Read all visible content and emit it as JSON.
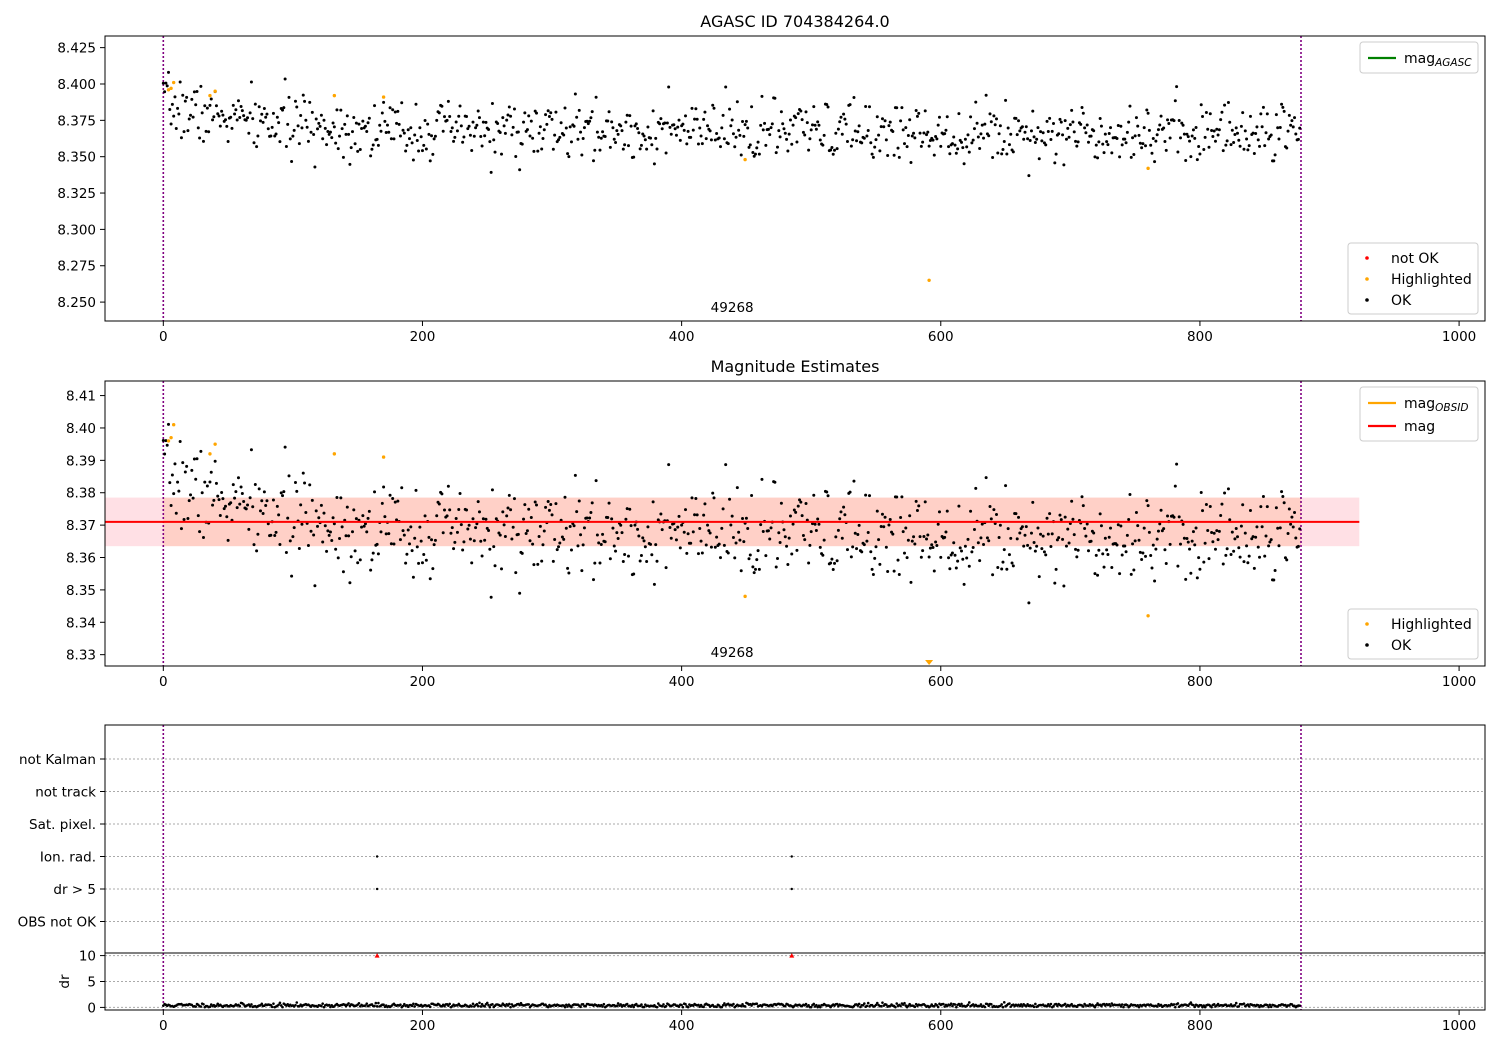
{
  "chart_data": [
    {
      "type": "scatter",
      "title": "AGASC ID 704384264.0",
      "xlim": [
        -45,
        1020
      ],
      "ylim": [
        8.237,
        8.433
      ],
      "x_ticks": [
        0,
        200,
        400,
        600,
        800,
        1000
      ],
      "x_tick_labels": [
        "0",
        "200",
        "400",
        "600",
        "800",
        "1000"
      ],
      "y_ticks": [
        8.25,
        8.275,
        8.3,
        8.325,
        8.35,
        8.375,
        8.4,
        8.425
      ],
      "y_tick_labels": [
        "8.250",
        "8.275",
        "8.300",
        "8.325",
        "8.350",
        "8.375",
        "8.400",
        "8.425"
      ],
      "vlines": [
        0,
        878
      ],
      "vline_color": "#800080",
      "annotation": {
        "text": "49268",
        "x": 439
      },
      "legend_lines": [
        {
          "name": "mag",
          "subscript": "AGASC",
          "color": "#008000"
        }
      ],
      "legend_lines_placement": "upper right",
      "legend_points": [
        {
          "name": "not OK",
          "color": "#ff0000"
        },
        {
          "name": "Highlighted",
          "color": "#ffa500"
        },
        {
          "name": "OK",
          "color": "#000000"
        }
      ],
      "legend_points_placement": "lower right",
      "highlighted": {
        "color": "#ffa500",
        "x": [
          4,
          6,
          8,
          36,
          40,
          132,
          170,
          449,
          591,
          760
        ],
        "y": [
          8.396,
          8.397,
          8.401,
          8.392,
          8.395,
          8.392,
          8.391,
          8.348,
          8.265,
          8.342
        ]
      },
      "ok_series": {
        "name": "OK",
        "color": "#000000",
        "n_points": 878,
        "x_range": [
          0,
          878
        ],
        "start_mean": 8.386,
        "end_mean": 8.367,
        "spread": 0.01
      }
    },
    {
      "type": "scatter",
      "title": "Magnitude Estimates",
      "xlim": [
        -45,
        1020
      ],
      "ylim": [
        8.3265,
        8.4145
      ],
      "x_ticks": [
        0,
        200,
        400,
        600,
        800,
        1000
      ],
      "x_tick_labels": [
        "0",
        "200",
        "400",
        "600",
        "800",
        "1000"
      ],
      "y_ticks": [
        8.33,
        8.34,
        8.35,
        8.36,
        8.37,
        8.38,
        8.39,
        8.4,
        8.41
      ],
      "y_tick_labels": [
        "8.33",
        "8.34",
        "8.35",
        "8.36",
        "8.37",
        "8.38",
        "8.39",
        "8.40",
        "8.41"
      ],
      "vlines": [
        0,
        878
      ],
      "vline_color": "#800080",
      "annotation": {
        "text": "49268",
        "x": 439
      },
      "mag_line": {
        "y": 8.371,
        "band": [
          8.3635,
          8.3785
        ],
        "x_range": [
          -45,
          923
        ],
        "color": "#ff0000",
        "band_color": "#ffdde2"
      },
      "mag_obsid_band": {
        "x_range": [
          0,
          878
        ],
        "band": [
          8.3635,
          8.3785
        ],
        "color": "#ffa070"
      },
      "legend_lines": [
        {
          "name": "mag",
          "subscript": "OBSID",
          "color": "#ffa500"
        },
        {
          "name": "mag",
          "subscript": "",
          "color": "#ff0000"
        }
      ],
      "legend_lines_placement": "upper right",
      "legend_points": [
        {
          "name": "Highlighted",
          "color": "#ffa500"
        },
        {
          "name": "OK",
          "color": "#000000"
        }
      ],
      "legend_points_placement": "lower right",
      "highlighted": {
        "color": "#ffa500",
        "x": [
          4,
          6,
          8,
          36,
          40,
          132,
          170,
          449,
          760
        ],
        "y": [
          8.396,
          8.397,
          8.401,
          8.392,
          8.395,
          8.392,
          8.391,
          8.348,
          8.342
        ]
      },
      "below_range_marker": {
        "x": 591,
        "color": "#ffa500"
      },
      "ok_series": {
        "name": "OK",
        "color": "#000000",
        "n_points": 878,
        "x_range": [
          0,
          878
        ],
        "start_mean": 8.386,
        "end_mean": 8.367,
        "spread": 0.007
      }
    },
    {
      "type": "scatter",
      "title": "",
      "xlim": [
        -45,
        1020
      ],
      "categories": [
        "not Kalman",
        "not track",
        "Sat. pixel.",
        "Ion. rad.",
        "dr > 5",
        "OBS not OK"
      ],
      "vlines": [
        0,
        878
      ],
      "vline_color": "#800080",
      "flags": [
        {
          "category": "Ion. rad.",
          "x": [
            165,
            485
          ]
        },
        {
          "category": "dr > 5",
          "x": [
            165,
            485
          ]
        }
      ]
    },
    {
      "type": "scatter",
      "title": "",
      "xlabel": "",
      "ylabel": "dr",
      "xlim": [
        -45,
        1020
      ],
      "ylim": [
        -0.5,
        10.5
      ],
      "x_ticks": [
        0,
        200,
        400,
        600,
        800,
        1000
      ],
      "x_tick_labels": [
        "0",
        "200",
        "400",
        "600",
        "800",
        "1000"
      ],
      "y_ticks": [
        0,
        5,
        10
      ],
      "y_tick_labels": [
        "0",
        "5",
        "10"
      ],
      "vlines": [
        0,
        878
      ],
      "vline_color": "#800080",
      "clipped_markers": {
        "x": [
          165,
          485
        ],
        "y": 10,
        "color": "#ff0000"
      },
      "dr_series": {
        "color": "#000000",
        "n_points": 878,
        "x_range": [
          0,
          878
        ],
        "mean": 0.4,
        "spread": 0.2
      }
    }
  ]
}
